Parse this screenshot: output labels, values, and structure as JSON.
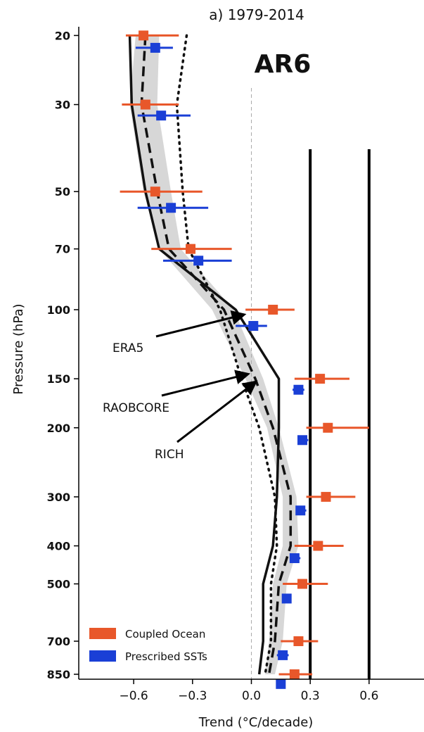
{
  "chart_data": {
    "type": "line",
    "title": "a) 1979-2014",
    "badge": "AR6",
    "xlabel": "Trend (°C/decade)",
    "ylabel": "Pressure (hPa)",
    "xlim": [
      -0.88,
      0.88
    ],
    "ylim": [
      875,
      19
    ],
    "yscale": "log",
    "xticks": [
      -0.6,
      -0.3,
      0.0,
      0.3,
      0.6
    ],
    "xtick_labels": [
      "−0.6",
      "−0.3",
      "0.0",
      "0.3",
      "0.6"
    ],
    "yticks": [
      20,
      30,
      50,
      70,
      100,
      150,
      200,
      300,
      400,
      500,
      700,
      850
    ],
    "vertical_lines": [
      0.3,
      0.6
    ],
    "colors": {
      "coupled": "#e8572a",
      "prescribed": "#1a3fd6",
      "envelope": "#d0d0d0",
      "line": "#111111"
    },
    "series": [
      {
        "name": "Coupled Ocean",
        "kind": "errorbar",
        "pressure": [
          20,
          30,
          50,
          70,
          100,
          150,
          200,
          300,
          400,
          500,
          700,
          850
        ],
        "values": [
          -0.55,
          -0.54,
          -0.49,
          -0.31,
          0.11,
          0.35,
          0.39,
          0.38,
          0.34,
          0.26,
          0.24,
          0.22
        ],
        "err_low": [
          -0.64,
          -0.66,
          -0.67,
          -0.51,
          -0.03,
          0.22,
          0.28,
          0.28,
          0.22,
          0.16,
          0.15,
          0.14
        ],
        "err_high": [
          -0.37,
          -0.37,
          -0.25,
          -0.1,
          0.22,
          0.5,
          0.6,
          0.53,
          0.47,
          0.39,
          0.34,
          0.31
        ]
      },
      {
        "name": "Prescribed SSTs",
        "kind": "errorbar",
        "pressure": [
          21.5,
          32,
          55,
          75,
          110,
          160,
          215,
          325,
          430,
          545,
          760,
          900
        ],
        "values": [
          -0.49,
          -0.46,
          -0.41,
          -0.27,
          0.01,
          0.24,
          0.26,
          0.25,
          0.22,
          0.18,
          0.16,
          0.15
        ],
        "err_low": [
          -0.59,
          -0.58,
          -0.58,
          -0.45,
          -0.08,
          0.21,
          0.24,
          0.23,
          0.2,
          0.16,
          0.13,
          0.13
        ],
        "err_high": [
          -0.4,
          -0.31,
          -0.22,
          -0.1,
          0.08,
          0.27,
          0.29,
          0.28,
          0.25,
          0.2,
          0.19,
          0.17
        ]
      },
      {
        "name": "ERA5",
        "kind": "solid",
        "pressure": [
          20,
          30,
          50,
          70,
          100,
          150,
          200,
          300,
          400,
          500,
          700,
          850
        ],
        "values": [
          -0.62,
          -0.61,
          -0.54,
          -0.47,
          -0.08,
          0.14,
          0.14,
          0.13,
          0.11,
          0.06,
          0.06,
          0.04
        ]
      },
      {
        "name": "RAOBCORE",
        "kind": "dashed",
        "pressure": [
          20,
          30,
          50,
          70,
          100,
          150,
          200,
          300,
          400,
          500,
          700,
          850
        ],
        "values": [
          -0.54,
          -0.56,
          -0.48,
          -0.42,
          -0.14,
          0.02,
          0.11,
          0.2,
          0.2,
          0.14,
          0.12,
          0.09
        ]
      },
      {
        "name": "RICH",
        "kind": "dotted",
        "pressure": [
          20,
          30,
          50,
          70,
          100,
          150,
          200,
          300,
          400,
          500,
          700,
          850
        ],
        "values": [
          -0.33,
          -0.38,
          -0.35,
          -0.32,
          -0.16,
          -0.05,
          0.04,
          0.12,
          0.13,
          0.1,
          0.1,
          0.07
        ]
      }
    ],
    "envelope": {
      "pressure": [
        20,
        30,
        50,
        70,
        100,
        150,
        200,
        300,
        400,
        500,
        700,
        850
      ],
      "low": [
        -0.59,
        -0.62,
        -0.55,
        -0.47,
        -0.2,
        -0.03,
        0.08,
        0.16,
        0.16,
        0.11,
        0.09,
        0.07
      ],
      "high": [
        -0.47,
        -0.48,
        -0.41,
        -0.36,
        -0.09,
        0.06,
        0.14,
        0.23,
        0.24,
        0.18,
        0.16,
        0.12
      ]
    },
    "annotations": [
      {
        "text": "ERA5",
        "target": {
          "x": -0.04,
          "p": 103
        }
      },
      {
        "text": "RAOBCORE",
        "target": {
          "x": -0.02,
          "p": 146
        }
      },
      {
        "text": "RICH",
        "target": {
          "x": 0.02,
          "p": 153
        }
      }
    ],
    "legend": {
      "position": "bottom-left",
      "entries": [
        {
          "label": "Coupled Ocean",
          "color": "#e8572a"
        },
        {
          "label": "Prescribed SSTs",
          "color": "#1a3fd6"
        }
      ]
    }
  }
}
